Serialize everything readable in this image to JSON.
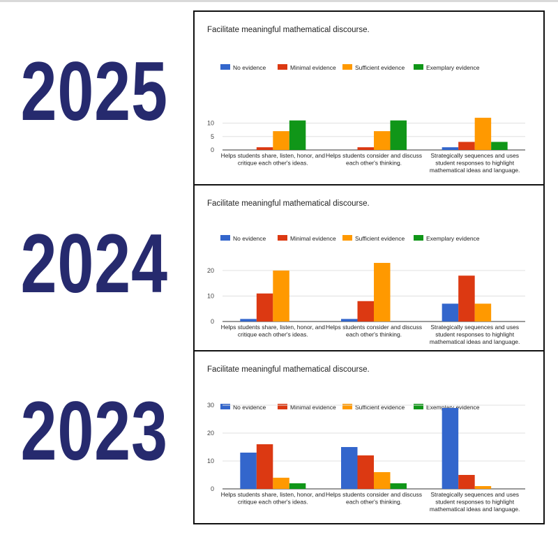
{
  "years": [
    "2025",
    "2024",
    "2023"
  ],
  "colors": {
    "no": "#3366cc",
    "minimal": "#dc3912",
    "sufficient": "#ff9900",
    "exemplary": "#109618",
    "year_text": "#262a6e"
  },
  "chart_data": [
    {
      "type": "bar",
      "title": "Facilitate meaningful mathematical discourse.",
      "year": "2025",
      "categories": [
        [
          "Helps students share, listen, honor, and",
          "critique each other's ideas."
        ],
        [
          "Helps students consider and discuss",
          "each other's thinking."
        ],
        [
          "Strategically sequences and uses",
          "student responses to highlight",
          "mathematical ideas and language."
        ]
      ],
      "legend_position": "top",
      "ylim": [
        0,
        13
      ],
      "yticks": [
        0,
        5,
        10
      ],
      "series": [
        {
          "name": "No evidence",
          "values": [
            0,
            0,
            1
          ]
        },
        {
          "name": "Minimal evidence",
          "values": [
            1,
            1,
            3
          ]
        },
        {
          "name": "Sufficient evidence",
          "values": [
            7,
            7,
            12
          ]
        },
        {
          "name": "Exemplary evidence",
          "values": [
            11,
            11,
            3
          ]
        }
      ]
    },
    {
      "type": "bar",
      "title": "Facilitate meaningful mathematical discourse.",
      "year": "2024",
      "categories": [
        [
          "Helps students share, listen, honor, and",
          "critique each other's ideas."
        ],
        [
          "Helps students consider and discuss",
          "each other's thinking."
        ],
        [
          "Strategically sequences and uses",
          "student responses to highlight",
          "mathematical ideas and language."
        ]
      ],
      "legend_position": "top",
      "ylim": [
        0,
        26
      ],
      "yticks": [
        0,
        10,
        20
      ],
      "series": [
        {
          "name": "No evidence",
          "values": [
            1,
            1,
            7
          ]
        },
        {
          "name": "Minimal evidence",
          "values": [
            11,
            8,
            18
          ]
        },
        {
          "name": "Sufficient evidence",
          "values": [
            20,
            23,
            7
          ]
        },
        {
          "name": "Exemplary evidence",
          "values": [
            0,
            0,
            0
          ]
        }
      ]
    },
    {
      "type": "bar",
      "title": "Facilitate meaningful mathematical discourse.",
      "year": "2023",
      "categories": [
        [
          "Helps students share, listen, honor, and",
          "critique each other's ideas."
        ],
        [
          "Helps students consider and discuss",
          "each other's thinking."
        ],
        [
          "Strategically sequences and uses",
          "student responses to highlight",
          "mathematical ideas and language."
        ]
      ],
      "legend_position": "top",
      "ylim": [
        0,
        30
      ],
      "yticks": [
        0,
        10,
        20,
        30
      ],
      "series": [
        {
          "name": "No evidence",
          "values": [
            13,
            15,
            29
          ]
        },
        {
          "name": "Minimal evidence",
          "values": [
            16,
            12,
            5
          ]
        },
        {
          "name": "Sufficient evidence",
          "values": [
            4,
            6,
            1
          ]
        },
        {
          "name": "Exemplary evidence",
          "values": [
            2,
            2,
            0
          ]
        }
      ]
    }
  ]
}
